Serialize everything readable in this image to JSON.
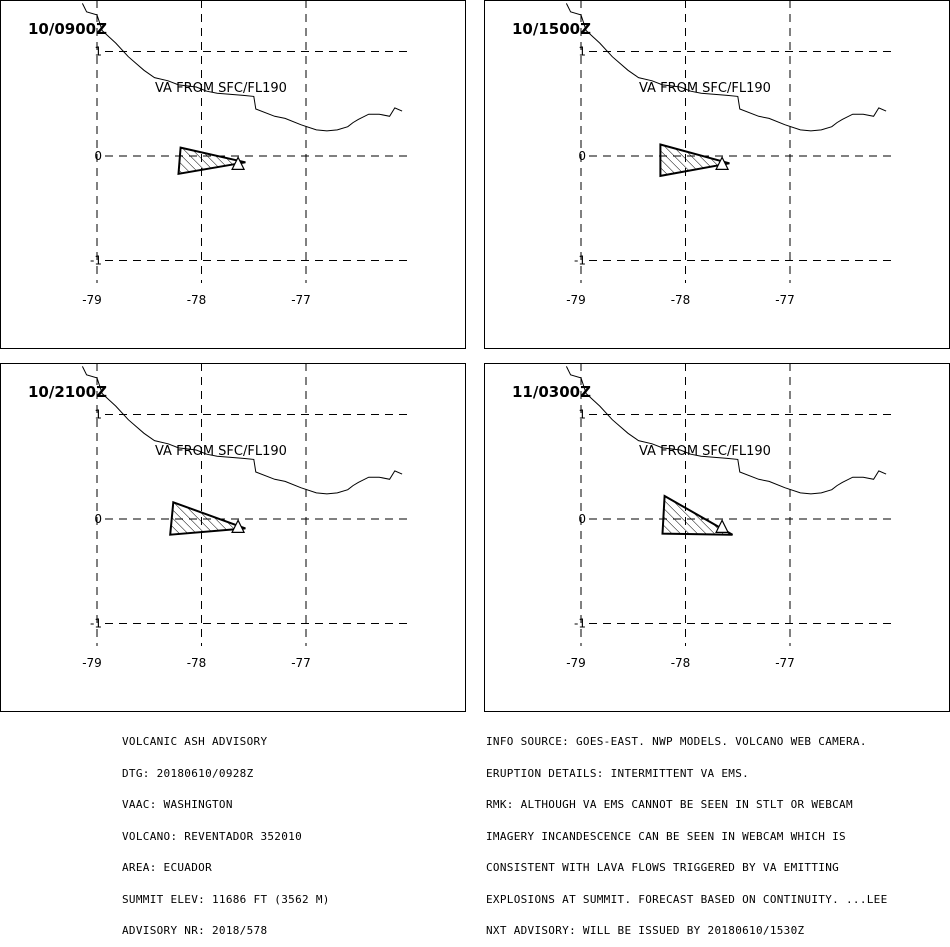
{
  "advisory_header": {
    "lines": [
      "VOLCANIC ASH ADVISORY",
      "DTG: 20180610/0928Z",
      "VAAC: WASHINGTON",
      "VOLCANO: REVENTADOR 352010",
      "AREA: ECUADOR",
      "SUMMIT ELEV: 11686 FT (3562 M)",
      "ADVISORY NR: 2018/578"
    ]
  },
  "advisory_remarks": {
    "lines": [
      "INFO SOURCE: GOES-EAST. NWP MODELS. VOLCANO WEB CAMERA.",
      "ERUPTION DETAILS: INTERMITTENT VA EMS.",
      "RMK: ALTHOUGH VA EMS CANNOT BE SEEN IN STLT OR WEBCAM",
      "IMAGERY INCANDESCENCE CAN BE SEEN IN WEBCAM WHICH IS",
      "CONSISTENT WITH LAVA FLOWS TRIGGERED BY VA EMITTING",
      "EXPLOSIONS AT SUMMIT. FORECAST BASED ON CONTINUITY. ...LEE",
      "NXT ADVISORY: WILL BE ISSUED BY 20180610/1530Z"
    ]
  },
  "map_axes": {
    "lat_labels": [
      "1",
      "0",
      "-1"
    ],
    "lon_labels": [
      "-79",
      "-78",
      "-77"
    ]
  },
  "panels": [
    {
      "time": "10/0900Z",
      "altitude": "VA FROM SFC/FL190",
      "ash_polygon": [
        [
          -78.2,
          0.08
        ],
        [
          -77.58,
          -0.06
        ],
        [
          -78.22,
          -0.17
        ]
      ]
    },
    {
      "time": "10/1500Z",
      "altitude": "VA FROM SFC/FL190",
      "ash_polygon": [
        [
          -78.24,
          0.11
        ],
        [
          -77.58,
          -0.07
        ],
        [
          -78.24,
          -0.19
        ]
      ]
    },
    {
      "time": "10/2100Z",
      "altitude": "VA FROM SFC/FL190",
      "ash_polygon": [
        [
          -78.27,
          0.16
        ],
        [
          -77.58,
          -0.09
        ],
        [
          -78.3,
          -0.15
        ]
      ]
    },
    {
      "time": "11/0300Z",
      "altitude": "VA FROM SFC/FL190",
      "ash_polygon": [
        [
          -78.2,
          0.22
        ],
        [
          -77.55,
          -0.15
        ],
        [
          -78.22,
          -0.14
        ]
      ]
    }
  ],
  "volcano_marker": {
    "symbol": "triangle",
    "lon": -77.65,
    "lat": -0.08
  },
  "coastline": [
    [
      -79.14,
      1.46
    ],
    [
      -79.1,
      1.38
    ],
    [
      -79.0,
      1.35
    ],
    [
      -78.95,
      1.2
    ],
    [
      -78.82,
      1.08
    ],
    [
      -78.7,
      0.95
    ],
    [
      -78.55,
      0.82
    ],
    [
      -78.45,
      0.75
    ],
    [
      -78.32,
      0.72
    ],
    [
      -78.22,
      0.68
    ],
    [
      -78.05,
      0.66
    ],
    [
      -77.95,
      0.62
    ],
    [
      -77.85,
      0.6
    ],
    [
      -77.6,
      0.58
    ],
    [
      -77.5,
      0.57
    ],
    [
      -77.48,
      0.45
    ],
    [
      -77.3,
      0.38
    ],
    [
      -77.2,
      0.36
    ],
    [
      -77.05,
      0.3
    ],
    [
      -76.9,
      0.25
    ],
    [
      -76.8,
      0.24
    ],
    [
      -76.7,
      0.25
    ],
    [
      -76.6,
      0.28
    ],
    [
      -76.55,
      0.32
    ],
    [
      -76.5,
      0.35
    ],
    [
      -76.4,
      0.4
    ],
    [
      -76.3,
      0.4
    ],
    [
      -76.2,
      0.38
    ],
    [
      -76.15,
      0.46
    ],
    [
      -76.08,
      0.43
    ]
  ]
}
